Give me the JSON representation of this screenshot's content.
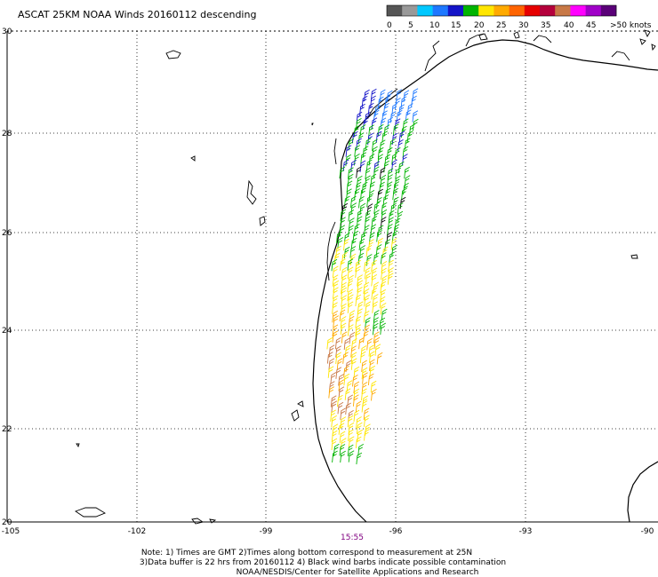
{
  "header": {
    "title": "ASCAT 25KM NOAA Winds 20160112 descending"
  },
  "legend": {
    "unit_label": ">50 knots",
    "tick_labels": [
      "0",
      "5",
      "10",
      "15",
      "20",
      "25",
      "30",
      "35",
      "40",
      "45"
    ],
    "colors": [
      "#555555",
      "#999999",
      "#00c8ff",
      "#1e78ff",
      "#1414c8",
      "#00b400",
      "#ffe600",
      "#ffaa00",
      "#ff6400",
      "#e60000",
      "#b4003c",
      "#c87846",
      "#ff00ff",
      "#a000c8",
      "#5a0078"
    ]
  },
  "axes": {
    "lat_labels": [
      "30",
      "28",
      "26",
      "24",
      "22",
      "20"
    ],
    "lon_labels": [
      "-105",
      "-102",
      "-99",
      "-96",
      "-93",
      "-90"
    ]
  },
  "time_label": "15:55",
  "footer": {
    "line1": "Note: 1) Times are GMT 2)Times along bottom correspond to measurement at 25N",
    "line2": "3)Data buffer is 22 hrs from 20160112 4) Black wind barbs indicate possible contamination",
    "line3": "NOAA/NESDIS/Center for Satellite Applications and Research"
  },
  "wind_colors": {
    "black": "#000000",
    "blue": "#1414c8",
    "light_blue": "#1e78ff",
    "green": "#00b400",
    "yellow": "#ffe600",
    "orange": "#ffaa00",
    "dark_orange": "#c87846"
  }
}
